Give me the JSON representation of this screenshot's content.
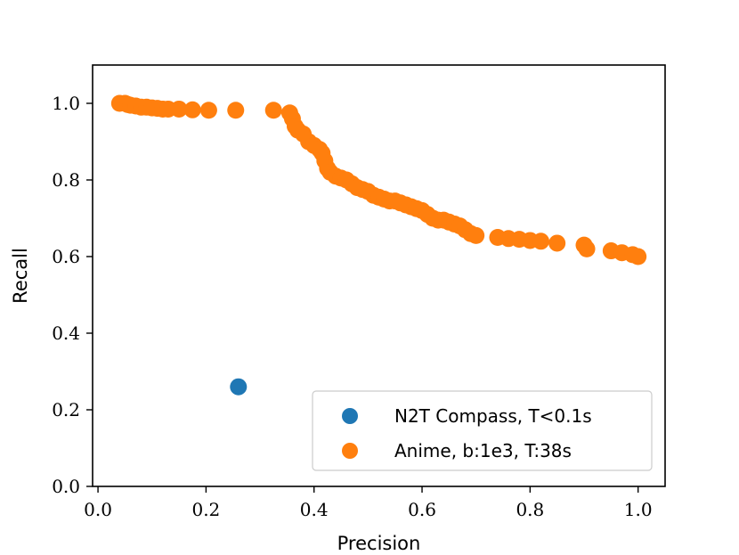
{
  "chart_data": {
    "type": "scatter",
    "title": "",
    "xlabel": "Precision",
    "ylabel": "Recall",
    "xlim": [
      -0.01,
      1.05
    ],
    "ylim": [
      0.0,
      1.1
    ],
    "xticks": [
      0.0,
      0.2,
      0.4,
      0.6,
      0.8,
      1.0
    ],
    "yticks": [
      0.0,
      0.2,
      0.4,
      0.6,
      0.8,
      1.0
    ],
    "xtick_labels": [
      "0.0",
      "0.2",
      "0.4",
      "0.6",
      "0.8",
      "1.0"
    ],
    "ytick_labels": [
      "0.0",
      "0.2",
      "0.4",
      "0.6",
      "0.8",
      "1.0"
    ],
    "legend_position": "lower-right",
    "series": [
      {
        "name": "N2T Compass, T<0.1s",
        "color": "#1f77b4",
        "points": [
          [
            0.26,
            0.26
          ]
        ]
      },
      {
        "name": "Anime, b:1e3, T:38s",
        "color": "#ff7f0e",
        "points": [
          [
            0.04,
            1.0
          ],
          [
            0.05,
            1.0
          ],
          [
            0.055,
            0.997
          ],
          [
            0.06,
            0.995
          ],
          [
            0.07,
            0.993
          ],
          [
            0.08,
            0.99
          ],
          [
            0.09,
            0.99
          ],
          [
            0.1,
            0.988
          ],
          [
            0.11,
            0.987
          ],
          [
            0.12,
            0.985
          ],
          [
            0.13,
            0.985
          ],
          [
            0.15,
            0.985
          ],
          [
            0.175,
            0.983
          ],
          [
            0.205,
            0.982
          ],
          [
            0.255,
            0.982
          ],
          [
            0.325,
            0.982
          ],
          [
            0.355,
            0.975
          ],
          [
            0.36,
            0.96
          ],
          [
            0.365,
            0.94
          ],
          [
            0.37,
            0.93
          ],
          [
            0.38,
            0.92
          ],
          [
            0.39,
            0.9
          ],
          [
            0.4,
            0.89
          ],
          [
            0.41,
            0.88
          ],
          [
            0.415,
            0.87
          ],
          [
            0.42,
            0.85
          ],
          [
            0.425,
            0.83
          ],
          [
            0.43,
            0.82
          ],
          [
            0.44,
            0.81
          ],
          [
            0.45,
            0.805
          ],
          [
            0.46,
            0.8
          ],
          [
            0.47,
            0.79
          ],
          [
            0.48,
            0.78
          ],
          [
            0.49,
            0.775
          ],
          [
            0.5,
            0.77
          ],
          [
            0.51,
            0.76
          ],
          [
            0.52,
            0.755
          ],
          [
            0.53,
            0.75
          ],
          [
            0.54,
            0.745
          ],
          [
            0.55,
            0.745
          ],
          [
            0.56,
            0.74
          ],
          [
            0.57,
            0.735
          ],
          [
            0.58,
            0.73
          ],
          [
            0.59,
            0.725
          ],
          [
            0.6,
            0.72
          ],
          [
            0.61,
            0.71
          ],
          [
            0.62,
            0.7
          ],
          [
            0.63,
            0.695
          ],
          [
            0.64,
            0.695
          ],
          [
            0.65,
            0.69
          ],
          [
            0.66,
            0.685
          ],
          [
            0.67,
            0.68
          ],
          [
            0.68,
            0.67
          ],
          [
            0.69,
            0.66
          ],
          [
            0.7,
            0.655
          ],
          [
            0.74,
            0.65
          ],
          [
            0.76,
            0.647
          ],
          [
            0.78,
            0.645
          ],
          [
            0.8,
            0.642
          ],
          [
            0.82,
            0.64
          ],
          [
            0.85,
            0.635
          ],
          [
            0.9,
            0.63
          ],
          [
            0.905,
            0.62
          ],
          [
            0.95,
            0.615
          ],
          [
            0.97,
            0.61
          ],
          [
            0.99,
            0.605
          ],
          [
            1.0,
            0.6
          ]
        ]
      }
    ]
  }
}
